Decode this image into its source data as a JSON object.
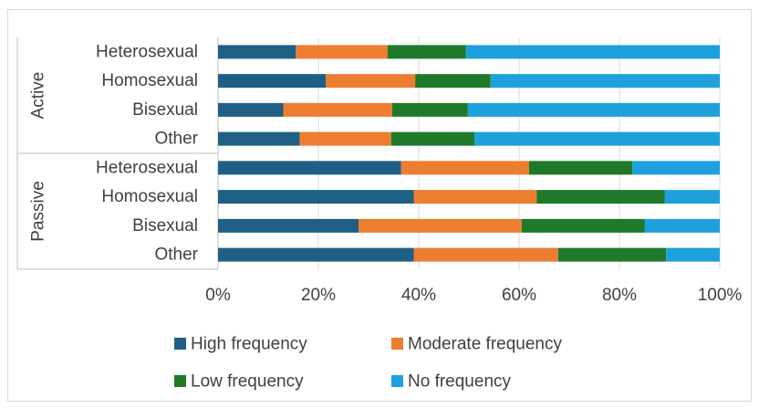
{
  "chart_data": {
    "type": "bar",
    "orientation": "horizontal",
    "stacking": "percent",
    "groups": [
      {
        "label": "Active",
        "categories": [
          "Heterosexual",
          "Homosexual",
          "Bisexual",
          "Other"
        ]
      },
      {
        "label": "Passive",
        "categories": [
          "Heterosexual",
          "Homosexual",
          "Bisexual",
          "Other"
        ]
      }
    ],
    "series": [
      {
        "name": "High frequency",
        "color": "#1f5f84",
        "values": [
          15.5,
          21.5,
          13.0,
          16.3,
          36.5,
          39.0,
          28.0,
          39.0
        ]
      },
      {
        "name": "Moderate frequency",
        "color": "#ed7d31",
        "values": [
          18.3,
          17.8,
          21.7,
          18.2,
          25.5,
          24.5,
          32.5,
          28.8
        ]
      },
      {
        "name": "Low frequency",
        "color": "#1e7a2a",
        "values": [
          15.6,
          15.0,
          15.1,
          16.6,
          20.6,
          25.5,
          24.5,
          21.5
        ]
      },
      {
        "name": "No frequency",
        "color": "#1ea0dc",
        "values": [
          50.6,
          45.7,
          50.2,
          48.9,
          17.4,
          11.0,
          15.0,
          10.7
        ]
      }
    ],
    "x_ticks": [
      "0%",
      "20%",
      "40%",
      "60%",
      "80%",
      "100%"
    ],
    "xlim": [
      0,
      100
    ],
    "legend_position": "bottom",
    "grid": "vertical"
  }
}
